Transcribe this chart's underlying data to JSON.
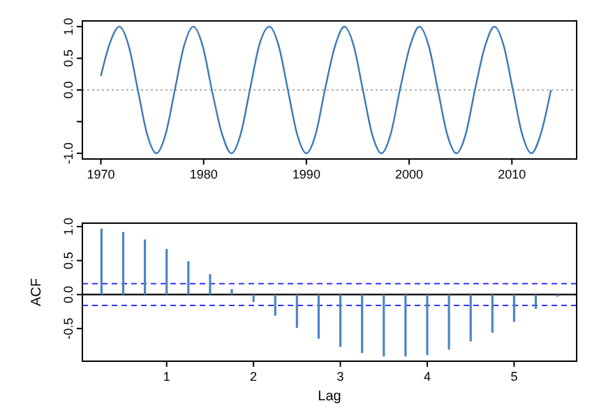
{
  "chart_data": [
    {
      "type": "line",
      "color": "#3a78b8",
      "x": [
        1970.0,
        1970.9,
        1971.8,
        1972.7,
        1973.6,
        1974.5,
        1975.4,
        1976.3,
        1977.2,
        1978.1,
        1979.0,
        1979.9,
        1980.8,
        1981.8,
        1982.7,
        1983.6,
        1984.5,
        1985.4,
        1986.4,
        1987.3,
        1988.2,
        1989.1,
        1990.0,
        1990.9,
        1991.8,
        1992.8,
        1993.7,
        1994.6,
        1995.5,
        1996.4,
        1997.3,
        1998.2,
        1999.1,
        2000.1,
        2001.0,
        2001.9,
        2002.8,
        2003.7,
        2004.6,
        2005.5,
        2006.4,
        2007.4,
        2008.3,
        2009.2,
        2010.1,
        2011.0,
        2011.9,
        2012.8,
        2013.8
      ],
      "values": [
        0.22,
        0.75,
        1.0,
        0.7,
        0.0,
        -0.7,
        -1.0,
        -0.7,
        0.0,
        0.7,
        1.0,
        0.7,
        0.0,
        -0.7,
        -1.0,
        -0.7,
        0.0,
        0.7,
        1.0,
        0.7,
        0.0,
        -0.7,
        -1.0,
        -0.7,
        0.0,
        0.7,
        1.0,
        0.7,
        0.0,
        -0.7,
        -1.0,
        -0.7,
        0.0,
        0.7,
        1.0,
        0.7,
        0.0,
        -0.7,
        -1.0,
        -0.7,
        0.0,
        0.7,
        1.0,
        0.7,
        0.0,
        -0.7,
        -1.0,
        -0.7,
        0.0
      ],
      "xlim": [
        1968.2,
        2016.3
      ],
      "xticks": [
        1970,
        1980,
        1990,
        2000,
        2010
      ],
      "ylim": [
        -1.09,
        1.09
      ],
      "yticks": [
        {
          "value": -1.0,
          "label": "-1.0"
        },
        {
          "value": -0.5,
          "label": null
        },
        {
          "value": 0.0,
          "label": "0.0"
        },
        {
          "value": 0.5,
          "label": "0.5"
        },
        {
          "value": 1.0,
          "label": "1.0"
        }
      ],
      "ref_lines": [
        {
          "axis": "y",
          "value": 0,
          "label": null,
          "color": "#b0b0b0",
          "line_style": "dotted"
        }
      ]
    },
    {
      "type": "bar",
      "color": "#4a86c0",
      "xlabel": "Lag",
      "ylabel": "ACF",
      "x": [
        0.25,
        0.5,
        0.75,
        1.0,
        1.25,
        1.5,
        1.75,
        2.0,
        2.25,
        2.5,
        2.75,
        3.0,
        3.25,
        3.5,
        3.75,
        4.0,
        4.25,
        4.5,
        4.75,
        5.0,
        5.25,
        5.5
      ],
      "values": [
        0.97,
        0.92,
        0.81,
        0.67,
        0.49,
        0.3,
        0.08,
        -0.11,
        -0.31,
        -0.49,
        -0.65,
        -0.77,
        -0.86,
        -0.91,
        -0.91,
        -0.89,
        -0.81,
        -0.69,
        -0.56,
        -0.4,
        -0.21,
        -0.03
      ],
      "xlim": [
        0.03,
        5.72
      ],
      "xticks": [
        1,
        2,
        3,
        4,
        5
      ],
      "ylim": [
        -0.98,
        1.05
      ],
      "yticks": [
        {
          "value": -0.5,
          "label": "-0.5"
        },
        {
          "value": 0.0,
          "label": "0.0"
        },
        {
          "value": 0.5,
          "label": "0.5"
        },
        {
          "value": 1.0,
          "label": "1.0"
        }
      ],
      "ref_lines": [
        {
          "axis": "y",
          "value": 0,
          "label": null,
          "color": "#000000",
          "line_style": "solid"
        },
        {
          "axis": "y",
          "value": 0.16,
          "label": null,
          "color": "#3333ff",
          "line_style": "dashed"
        },
        {
          "axis": "y",
          "value": -0.16,
          "label": null,
          "color": "#3333ff",
          "line_style": "dashed"
        }
      ]
    }
  ]
}
